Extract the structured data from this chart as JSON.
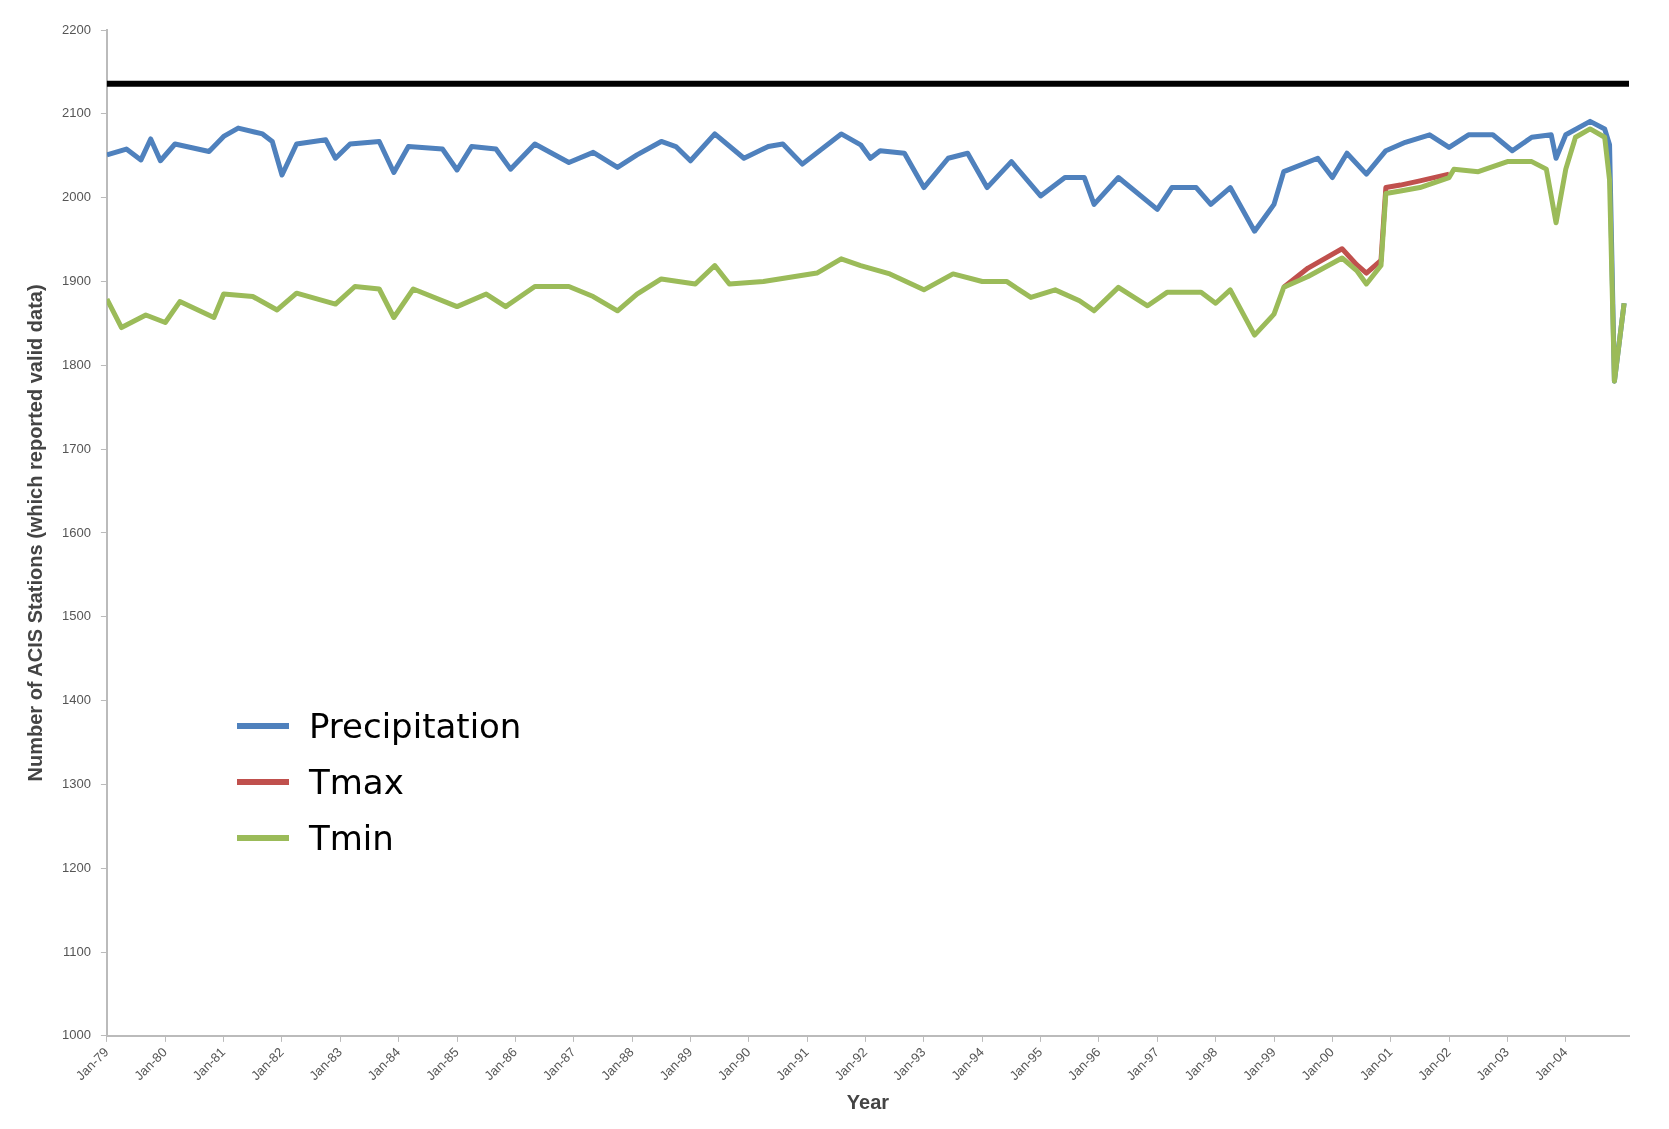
{
  "chart_data": {
    "type": "line",
    "xlabel": "Year",
    "ylabel": "Number of ACIS Stations (which reported valid data)",
    "xlim": [
      "1979-01",
      "2005-02"
    ],
    "xticks": [
      {
        "value": "1979-01",
        "label": "Jan-79"
      },
      {
        "value": "1980-01",
        "label": "Jan-80"
      },
      {
        "value": "1981-01",
        "label": "Jan-81"
      },
      {
        "value": "1982-01",
        "label": "Jan-82"
      },
      {
        "value": "1983-01",
        "label": "Jan-83"
      },
      {
        "value": "1984-01",
        "label": "Jan-84"
      },
      {
        "value": "1985-01",
        "label": "Jan-85"
      },
      {
        "value": "1986-01",
        "label": "Jan-86"
      },
      {
        "value": "1987-01",
        "label": "Jan-87"
      },
      {
        "value": "1988-01",
        "label": "Jan-88"
      },
      {
        "value": "1989-01",
        "label": "Jan-89"
      },
      {
        "value": "1990-01",
        "label": "Jan-90"
      },
      {
        "value": "1991-01",
        "label": "Jan-91"
      },
      {
        "value": "1992-01",
        "label": "Jan-92"
      },
      {
        "value": "1993-01",
        "label": "Jan-93"
      },
      {
        "value": "1994-01",
        "label": "Jan-94"
      },
      {
        "value": "1995-01",
        "label": "Jan-95"
      },
      {
        "value": "1996-01",
        "label": "Jan-96"
      },
      {
        "value": "1997-01",
        "label": "Jan-97"
      },
      {
        "value": "1998-01",
        "label": "Jan-98"
      },
      {
        "value": "1999-01",
        "label": "Jan-99"
      },
      {
        "value": "2000-01",
        "label": "Jan-00"
      },
      {
        "value": "2001-01",
        "label": "Jan-01"
      },
      {
        "value": "2002-01",
        "label": "Jan-02"
      },
      {
        "value": "2003-01",
        "label": "Jan-03"
      },
      {
        "value": "2004-01",
        "label": "Jan-04"
      }
    ],
    "ylim": [
      1000,
      2200
    ],
    "yticks": [
      1000,
      1100,
      1200,
      1300,
      1400,
      1500,
      1600,
      1700,
      1800,
      1900,
      2000,
      2100,
      2200
    ],
    "grid": false,
    "legend": "bottom left",
    "marker": "none",
    "line_style": "solid",
    "ref_lines": [
      {
        "axis": "y",
        "value": 2136,
        "color": "#000000"
      }
    ],
    "series": [
      {
        "name": "Precipitation",
        "color": "#4f81bd",
        "x": [
          "1979-01",
          "1979-05",
          "1979-08",
          "1979-10",
          "1979-12",
          "1980-03",
          "1980-10",
          "1981-01",
          "1981-04",
          "1981-09",
          "1981-11",
          "1982-01",
          "1982-04",
          "1982-10",
          "1982-12",
          "1983-03",
          "1983-09",
          "1983-12",
          "1984-03",
          "1984-10",
          "1985-01",
          "1985-04",
          "1985-09",
          "1985-12",
          "1986-05",
          "1986-12",
          "1987-05",
          "1987-10",
          "1988-02",
          "1988-07",
          "1988-10",
          "1989-01",
          "1989-06",
          "1989-12",
          "1990-05",
          "1990-08",
          "1990-12",
          "1991-08",
          "1991-12",
          "1992-02",
          "1992-04",
          "1992-09",
          "1993-01",
          "1993-06",
          "1993-10",
          "1994-02",
          "1994-07",
          "1995-01",
          "1995-06",
          "1995-10",
          "1995-12",
          "1996-05",
          "1997-01",
          "1997-04",
          "1997-09",
          "1997-12",
          "1998-04",
          "1998-09",
          "1999-01",
          "1999-03",
          "1999-10",
          "2000-01",
          "2000-04",
          "2000-08",
          "2000-12",
          "2001-04",
          "2001-09",
          "2002-01",
          "2002-05",
          "2002-10",
          "2003-02",
          "2003-06",
          "2003-10",
          "2003-11",
          "2004-01",
          "2004-06",
          "2004-09",
          "2004-10",
          "2004-11",
          "2005-01"
        ],
        "values": [
          2051,
          2058,
          2045,
          2070,
          2044,
          2064,
          2055,
          2073,
          2083,
          2076,
          2067,
          2027,
          2064,
          2069,
          2047,
          2064,
          2067,
          2030,
          2061,
          2058,
          2033,
          2061,
          2058,
          2034,
          2064,
          2042,
          2054,
          2036,
          2051,
          2067,
          2061,
          2044,
          2076,
          2047,
          2061,
          2064,
          2040,
          2076,
          2063,
          2047,
          2056,
          2053,
          2012,
          2047,
          2053,
          2012,
          2043,
          2002,
          2024,
          2024,
          1992,
          2024,
          1986,
          2012,
          2012,
          1992,
          2012,
          1960,
          1992,
          2031,
          2047,
          2024,
          2053,
          2028,
          2056,
          2066,
          2075,
          2060,
          2075,
          2075,
          2056,
          2072,
          2075,
          2047,
          2075,
          2091,
          2082,
          2063,
          1781,
          1874
        ]
      },
      {
        "name": "Tmax",
        "color": "#c0504d",
        "x": [
          "1999-03",
          "1999-08",
          "2000-03",
          "2000-06",
          "2000-08",
          "2000-11",
          "2000-12",
          "2001-03",
          "2001-07",
          "2002-01"
        ],
        "values": [
          1893,
          1916,
          1939,
          1920,
          1910,
          1925,
          2012,
          2015,
          2020,
          2028
        ]
      },
      {
        "name": "Tmin",
        "color": "#9bbb59",
        "x": [
          "1979-01",
          "1979-04",
          "1979-09",
          "1980-01",
          "1980-04",
          "1980-11",
          "1981-01",
          "1981-07",
          "1981-12",
          "1982-04",
          "1982-12",
          "1983-04",
          "1983-09",
          "1983-12",
          "1984-04",
          "1985-01",
          "1985-07",
          "1985-11",
          "1986-05",
          "1986-12",
          "1987-05",
          "1987-10",
          "1988-02",
          "1988-07",
          "1989-02",
          "1989-06",
          "1989-09",
          "1990-04",
          "1991-03",
          "1991-08",
          "1991-12",
          "1992-06",
          "1993-01",
          "1993-07",
          "1994-01",
          "1994-06",
          "1994-11",
          "1995-04",
          "1995-09",
          "1995-12",
          "1996-05",
          "1996-11",
          "1997-03",
          "1997-10",
          "1998-01",
          "1998-04",
          "1998-09",
          "1999-01",
          "1999-03",
          "1999-08",
          "2000-03",
          "2000-06",
          "2000-08",
          "2000-11",
          "2000-12",
          "2001-03",
          "2001-07",
          "2002-01",
          "2002-02",
          "2002-07",
          "2003-01",
          "2003-06",
          "2003-09",
          "2003-11",
          "2004-01",
          "2004-03",
          "2004-06",
          "2004-09",
          "2004-10",
          "2004-11",
          "2005-01"
        ],
        "values": [
          1879,
          1845,
          1860,
          1851,
          1876,
          1857,
          1885,
          1882,
          1866,
          1886,
          1873,
          1894,
          1891,
          1857,
          1891,
          1870,
          1885,
          1870,
          1894,
          1894,
          1882,
          1865,
          1885,
          1903,
          1897,
          1919,
          1897,
          1900,
          1910,
          1927,
          1919,
          1909,
          1890,
          1909,
          1900,
          1900,
          1881,
          1890,
          1877,
          1865,
          1893,
          1871,
          1887,
          1887,
          1874,
          1890,
          1836,
          1861,
          1893,
          1906,
          1928,
          1913,
          1897,
          1919,
          2005,
          2008,
          2012,
          2024,
          2034,
          2031,
          2043,
          2043,
          2034,
          1970,
          2034,
          2072,
          2082,
          2072,
          2021,
          1781,
          1874
        ]
      }
    ]
  }
}
